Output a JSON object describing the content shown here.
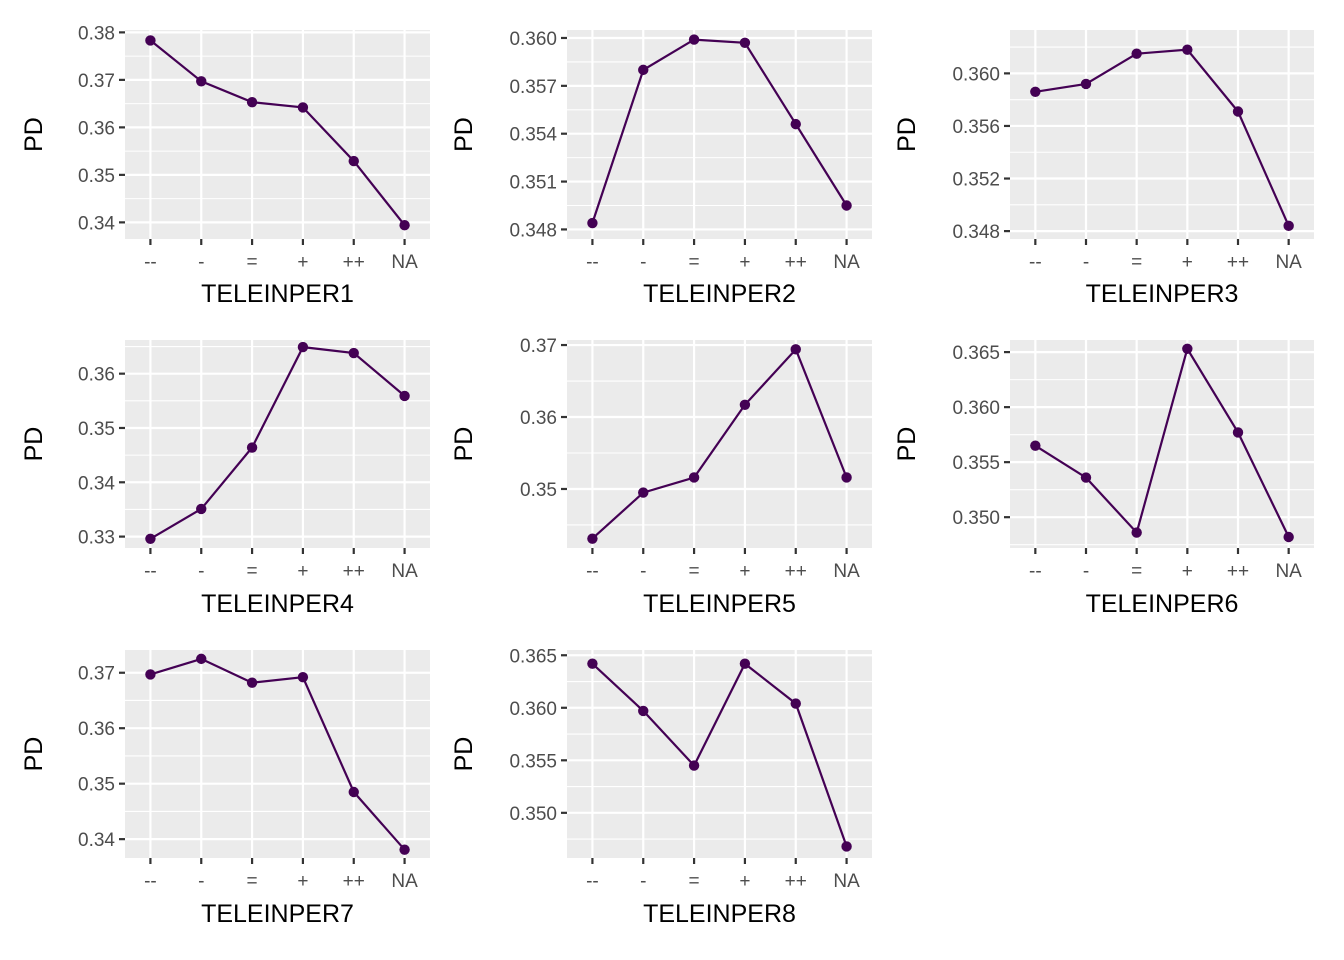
{
  "colors": {
    "series": "#440154",
    "panel": "#ebebeb",
    "grid": "#ffffff",
    "tick_text": "#4d4d4d"
  },
  "chart_data": [
    {
      "type": "line",
      "categories": [
        "--",
        "-",
        "=",
        "+",
        "++",
        "NA"
      ],
      "xlabel": "TELEINPER1",
      "ylabel": "PD",
      "ylim": [
        0.3365,
        0.3805
      ],
      "yticks": [
        0.34,
        0.35,
        0.36,
        0.37,
        0.38
      ],
      "ytick_labels": [
        "0.34",
        "0.35",
        "0.36",
        "0.37",
        "0.38"
      ],
      "values": [
        0.3783,
        0.3697,
        0.3653,
        0.3642,
        0.3529,
        0.3394
      ]
    },
    {
      "type": "line",
      "categories": [
        "--",
        "-",
        "=",
        "+",
        "++",
        "NA"
      ],
      "xlabel": "TELEINPER2",
      "ylabel": "PD",
      "ylim": [
        0.3474,
        0.3605
      ],
      "yticks": [
        0.348,
        0.351,
        0.354,
        0.357,
        0.36
      ],
      "ytick_labels": [
        "0.348",
        "0.351",
        "0.354",
        "0.357",
        "0.360"
      ],
      "values": [
        0.3484,
        0.358,
        0.3599,
        0.3597,
        0.3546,
        0.3495
      ]
    },
    {
      "type": "line",
      "categories": [
        "--",
        "-",
        "=",
        "+",
        "++",
        "NA"
      ],
      "xlabel": "TELEINPER3",
      "ylabel": "PD",
      "ylim": [
        0.3474,
        0.3633
      ],
      "yticks": [
        0.348,
        0.352,
        0.356,
        0.36
      ],
      "ytick_labels": [
        "0.348",
        "0.352",
        "0.356",
        "0.360"
      ],
      "values": [
        0.3586,
        0.3592,
        0.3615,
        0.3618,
        0.3571,
        0.3484
      ]
    },
    {
      "type": "line",
      "categories": [
        "--",
        "-",
        "=",
        "+",
        "++",
        "NA"
      ],
      "xlabel": "TELEINPER4",
      "ylabel": "PD",
      "ylim": [
        0.3279,
        0.3662
      ],
      "yticks": [
        0.33,
        0.34,
        0.35,
        0.36
      ],
      "ytick_labels": [
        "0.33",
        "0.34",
        "0.35",
        "0.36"
      ],
      "values": [
        0.3296,
        0.3351,
        0.3464,
        0.3649,
        0.3638,
        0.3559
      ]
    },
    {
      "type": "line",
      "categories": [
        "--",
        "-",
        "=",
        "+",
        "++",
        "NA"
      ],
      "xlabel": "TELEINPER5",
      "ylabel": "PD",
      "ylim": [
        0.3418,
        0.3707
      ],
      "yticks": [
        0.35,
        0.36,
        0.37
      ],
      "ytick_labels": [
        "0.35",
        "0.36",
        "0.37"
      ],
      "values": [
        0.3431,
        0.3495,
        0.3516,
        0.3617,
        0.3694,
        0.3516
      ]
    },
    {
      "type": "line",
      "categories": [
        "--",
        "-",
        "=",
        "+",
        "++",
        "NA"
      ],
      "xlabel": "TELEINPER6",
      "ylabel": "PD",
      "ylim": [
        0.3472,
        0.3661
      ],
      "yticks": [
        0.35,
        0.355,
        0.36,
        0.365
      ],
      "ytick_labels": [
        "0.350",
        "0.355",
        "0.360",
        "0.365"
      ],
      "values": [
        0.3565,
        0.3536,
        0.3486,
        0.3653,
        0.3577,
        0.3482
      ]
    },
    {
      "type": "line",
      "categories": [
        "--",
        "-",
        "=",
        "+",
        "++",
        "NA"
      ],
      "xlabel": "TELEINPER7",
      "ylabel": "PD",
      "ylim": [
        0.3366,
        0.3741
      ],
      "yticks": [
        0.34,
        0.35,
        0.36,
        0.37
      ],
      "ytick_labels": [
        "0.34",
        "0.35",
        "0.36",
        "0.37"
      ],
      "values": [
        0.3697,
        0.3725,
        0.3682,
        0.3692,
        0.3485,
        0.3381
      ]
    },
    {
      "type": "line",
      "categories": [
        "--",
        "-",
        "=",
        "+",
        "++",
        "NA"
      ],
      "xlabel": "TELEINPER8",
      "ylabel": "PD",
      "ylim": [
        0.3457,
        0.3655
      ],
      "yticks": [
        0.35,
        0.355,
        0.36,
        0.365
      ],
      "ytick_labels": [
        "0.350",
        "0.355",
        "0.360",
        "0.365"
      ],
      "values": [
        0.3642,
        0.3597,
        0.3545,
        0.3642,
        0.3604,
        0.3468
      ]
    }
  ]
}
